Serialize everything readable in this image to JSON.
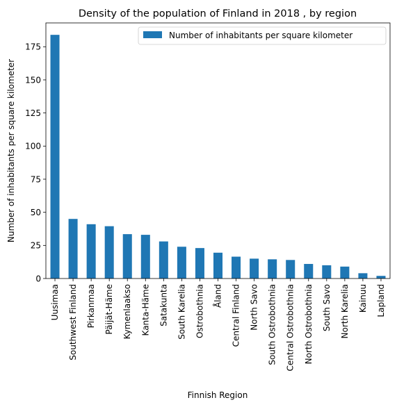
{
  "chart_data": {
    "type": "bar",
    "title": "Density of the population of Finland in 2018 , by region",
    "xlabel": "Finnish Region",
    "ylabel": "Number of inhabitants per square kilometer",
    "ylim": [
      0,
      193
    ],
    "yticks": [
      0,
      25,
      50,
      75,
      100,
      125,
      150,
      175
    ],
    "grid": false,
    "legend_position": "top-right",
    "categories": [
      "Uusimaa",
      "Southwest Finland",
      "Pirkanmaa",
      "Päijät-Häme",
      "Kymenlaakso",
      "Kanta-Häme",
      "Satakunta",
      "South Karelia",
      "Ostrobothnia",
      "Åland",
      "Central Finland",
      "North Savo",
      "South Ostrobothnia",
      "Central Ostrobothnia",
      "North Ostrobothnia",
      "South Savo",
      "North Karelia",
      "Kainuu",
      "Lapland"
    ],
    "series": [
      {
        "name": "Number of inhabitants per square kilometer",
        "color": "#1f77b4",
        "values": [
          184,
          45,
          41,
          39.5,
          33.5,
          33,
          28,
          24,
          23,
          19.5,
          16.5,
          15,
          14.5,
          14,
          11,
          10,
          9,
          4,
          2
        ]
      }
    ]
  }
}
